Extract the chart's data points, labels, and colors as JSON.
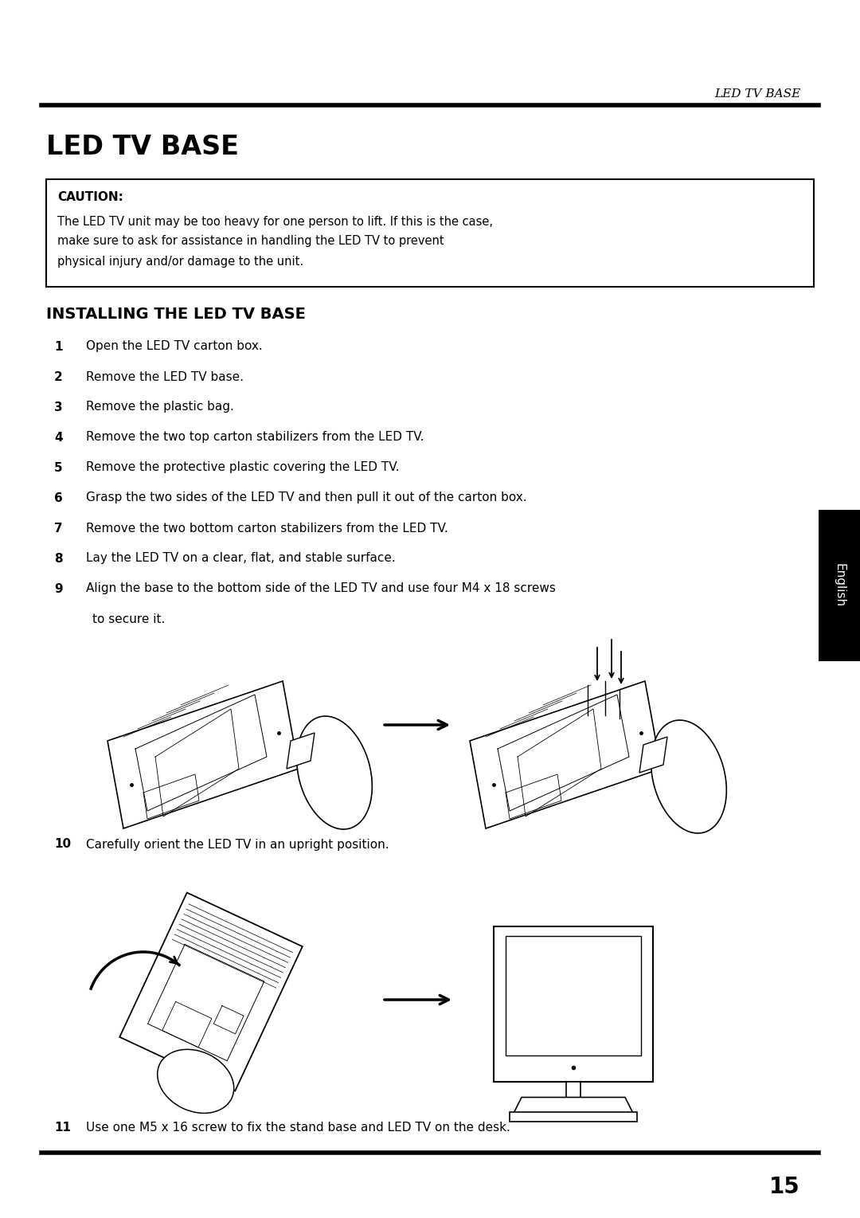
{
  "bg_color": "#ffffff",
  "header_italic_text": "LED TV BASE",
  "main_title": "LED TV BASE",
  "caution_label": "CAUTION:",
  "caution_line1": "The LED TV unit may be too heavy for one person to lift. If this is the case,",
  "caution_line2": "make sure to ask for assistance in handling the LED TV to prevent",
  "caution_line3": "physical injury and/or damage to the unit.",
  "section_title": "INSTALLING THE LED TV BASE",
  "steps": [
    {
      "num": "1",
      "text": "Open the LED TV carton box."
    },
    {
      "num": "2",
      "text": "Remove the LED TV base."
    },
    {
      "num": "3",
      "text": "Remove the plastic bag."
    },
    {
      "num": "4",
      "text": "Remove the two top carton stabilizers from the LED TV."
    },
    {
      "num": "5",
      "text": "Remove the protective plastic covering the LED TV."
    },
    {
      "num": "6",
      "text": "Grasp the two sides of the LED TV and then pull it out of the carton box."
    },
    {
      "num": "7",
      "text": "Remove the two bottom carton stabilizers from the LED TV."
    },
    {
      "num": "8",
      "text": "Lay the LED TV on a clear, flat, and stable surface."
    },
    {
      "num": "9",
      "text": "Align the base to the bottom side of the LED TV and use four M4 x 18 screws"
    },
    {
      "num": "",
      "text": "to secure it."
    }
  ],
  "step10_num": "10",
  "step10_text": "Carefully orient the LED TV in an upright position.",
  "step11_num": "11",
  "step11_text": "Use one M5 x 16 screw to fix the stand base and LED TV on the desk.",
  "footer_number": "15",
  "english_tab_text": "English"
}
